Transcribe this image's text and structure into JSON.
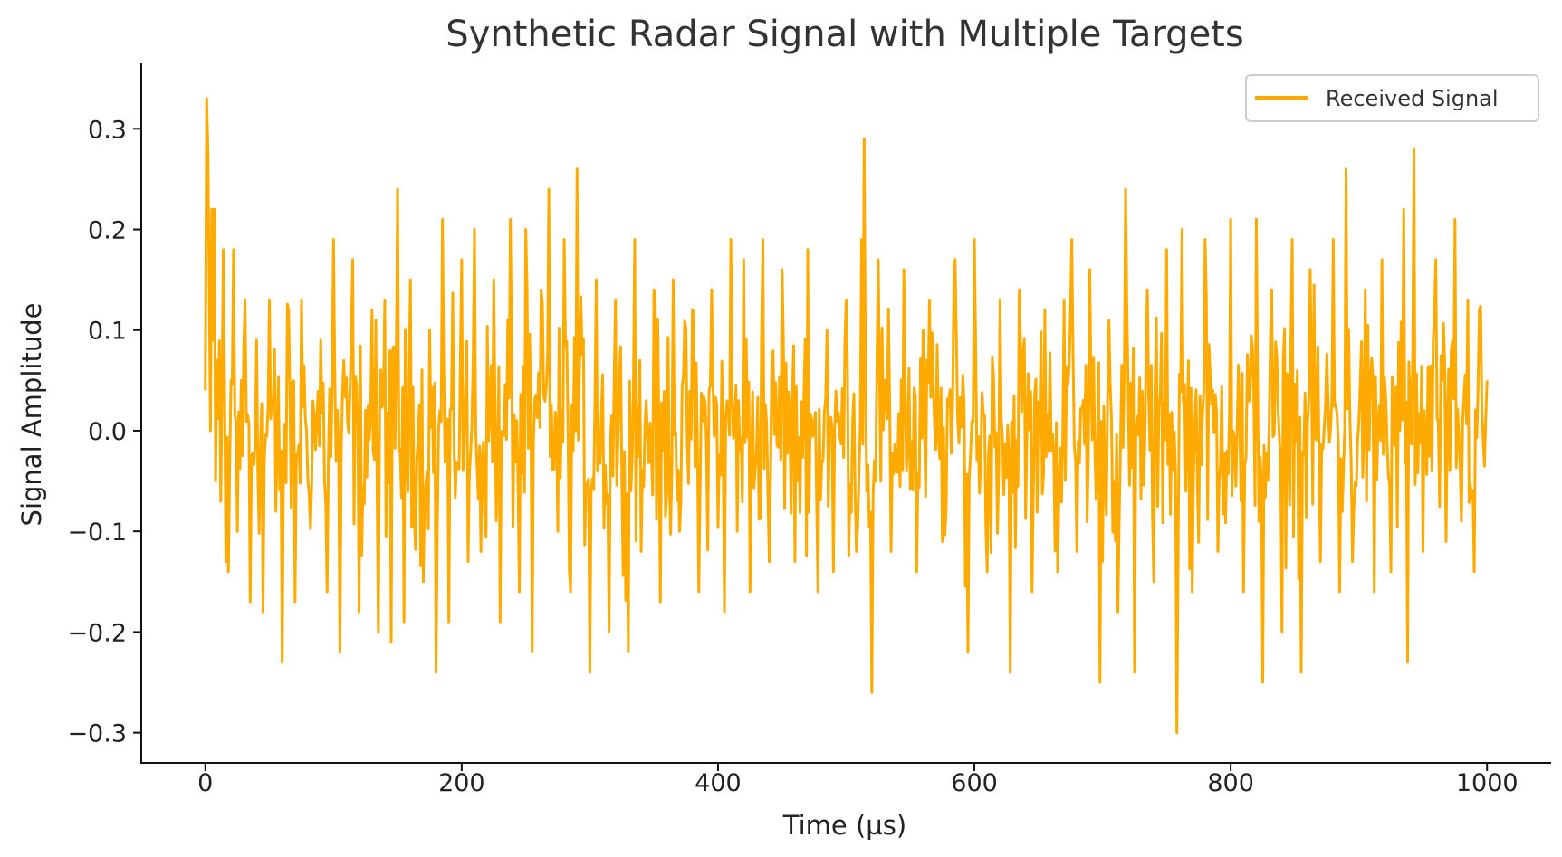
{
  "chart_data": {
    "type": "line",
    "title": "Synthetic Radar Signal with Multiple Targets",
    "xlabel": "Time (µs)",
    "ylabel": "Signal Amplitude",
    "xlim": [
      -50,
      1050
    ],
    "ylim": [
      -0.33,
      0.365
    ],
    "xticks": [
      0,
      200,
      400,
      600,
      800,
      1000
    ],
    "xtick_labels": [
      "0",
      "200",
      "400",
      "600",
      "800",
      "1000"
    ],
    "yticks": [
      -0.3,
      -0.2,
      -0.1,
      0.0,
      0.1,
      0.2,
      0.3
    ],
    "ytick_labels": [
      "−0.3",
      "−0.2",
      "−0.1",
      "0.0",
      "0.1",
      "0.2",
      "0.3"
    ],
    "grid": false,
    "legend_position": "top-right",
    "series": [
      {
        "name": "Received Signal",
        "color": "#FFAA00",
        "x_start": 0,
        "x_end": 1000,
        "x_step": 1,
        "points": [
          [
            0,
            0.04
          ],
          [
            1,
            0.33
          ],
          [
            2,
            0.28
          ],
          [
            3,
            0.15
          ],
          [
            4,
            0.0
          ],
          [
            5,
            0.22
          ],
          [
            6,
            0.09
          ],
          [
            7,
            0.22
          ],
          [
            8,
            -0.05
          ],
          [
            9,
            0.07
          ],
          [
            12,
            -0.07
          ],
          [
            14,
            0.18
          ],
          [
            16,
            -0.13
          ],
          [
            18,
            -0.14
          ],
          [
            20,
            0.05
          ],
          [
            22,
            0.18
          ],
          [
            25,
            -0.1
          ],
          [
            28,
            0.05
          ],
          [
            31,
            0.13
          ],
          [
            35,
            -0.17
          ],
          [
            40,
            0.09
          ],
          [
            45,
            -0.18
          ],
          [
            50,
            0.13
          ],
          [
            55,
            -0.08
          ],
          [
            60,
            -0.23
          ],
          [
            65,
            0.12
          ],
          [
            70,
            -0.17
          ],
          [
            75,
            0.13
          ],
          [
            80,
            -0.05
          ],
          [
            90,
            0.09
          ],
          [
            95,
            -0.16
          ],
          [
            100,
            0.19
          ],
          [
            105,
            -0.22
          ],
          [
            115,
            0.17
          ],
          [
            120,
            -0.18
          ],
          [
            130,
            0.12
          ],
          [
            135,
            -0.2
          ],
          [
            140,
            0.13
          ],
          [
            145,
            -0.21
          ],
          [
            150,
            0.24
          ],
          [
            155,
            -0.19
          ],
          [
            160,
            0.15
          ],
          [
            170,
            -0.15
          ],
          [
            175,
            0.1
          ],
          [
            180,
            -0.24
          ],
          [
            185,
            0.21
          ],
          [
            190,
            -0.19
          ],
          [
            200,
            0.17
          ],
          [
            205,
            -0.13
          ],
          [
            210,
            0.2
          ],
          [
            215,
            -0.12
          ],
          [
            225,
            0.15
          ],
          [
            230,
            -0.19
          ],
          [
            238,
            0.21
          ],
          [
            245,
            -0.16
          ],
          [
            250,
            0.2
          ],
          [
            255,
            -0.22
          ],
          [
            262,
            0.14
          ],
          [
            268,
            0.24
          ],
          [
            275,
            -0.1
          ],
          [
            280,
            0.19
          ],
          [
            285,
            -0.16
          ],
          [
            290,
            0.26
          ],
          [
            300,
            -0.24
          ],
          [
            305,
            0.15
          ],
          [
            315,
            -0.2
          ],
          [
            320,
            0.13
          ],
          [
            330,
            -0.22
          ],
          [
            335,
            0.19
          ],
          [
            340,
            -0.12
          ],
          [
            350,
            0.14
          ],
          [
            355,
            -0.17
          ],
          [
            365,
            0.15
          ],
          [
            370,
            -0.1
          ],
          [
            380,
            0.12
          ],
          [
            385,
            -0.16
          ],
          [
            395,
            0.14
          ],
          [
            405,
            -0.18
          ],
          [
            410,
            0.19
          ],
          [
            415,
            -0.1
          ],
          [
            420,
            0.17
          ],
          [
            425,
            -0.16
          ],
          [
            435,
            0.19
          ],
          [
            440,
            -0.13
          ],
          [
            450,
            0.16
          ],
          [
            460,
            -0.13
          ],
          [
            470,
            0.18
          ],
          [
            478,
            -0.16
          ],
          [
            485,
            0.1
          ],
          [
            490,
            -0.14
          ],
          [
            500,
            0.13
          ],
          [
            508,
            -0.12
          ],
          [
            512,
            0.19
          ],
          [
            514,
            0.29
          ],
          [
            516,
            -0.06
          ],
          [
            520,
            -0.26
          ],
          [
            525,
            0.17
          ],
          [
            535,
            -0.12
          ],
          [
            545,
            0.16
          ],
          [
            555,
            -0.14
          ],
          [
            565,
            0.13
          ],
          [
            575,
            -0.11
          ],
          [
            585,
            0.17
          ],
          [
            595,
            -0.22
          ],
          [
            600,
            0.19
          ],
          [
            610,
            -0.14
          ],
          [
            620,
            0.13
          ],
          [
            628,
            -0.24
          ],
          [
            635,
            0.14
          ],
          [
            645,
            -0.16
          ],
          [
            655,
            0.12
          ],
          [
            665,
            -0.14
          ],
          [
            670,
            0.13
          ],
          [
            676,
            0.19
          ],
          [
            680,
            -0.12
          ],
          [
            690,
            0.16
          ],
          [
            698,
            -0.25
          ],
          [
            705,
            0.11
          ],
          [
            712,
            -0.18
          ],
          [
            718,
            0.24
          ],
          [
            725,
            -0.24
          ],
          [
            735,
            0.14
          ],
          [
            740,
            -0.15
          ],
          [
            750,
            0.18
          ],
          [
            758,
            -0.3
          ],
          [
            762,
            0.2
          ],
          [
            770,
            -0.16
          ],
          [
            780,
            0.19
          ],
          [
            790,
            -0.12
          ],
          [
            800,
            0.21
          ],
          [
            810,
            -0.16
          ],
          [
            820,
            0.21
          ],
          [
            825,
            -0.25
          ],
          [
            832,
            0.14
          ],
          [
            840,
            -0.2
          ],
          [
            848,
            0.19
          ],
          [
            855,
            -0.24
          ],
          [
            862,
            0.16
          ],
          [
            870,
            -0.13
          ],
          [
            880,
            0.19
          ],
          [
            885,
            -0.16
          ],
          [
            890,
            0.26
          ],
          [
            895,
            -0.13
          ],
          [
            905,
            0.14
          ],
          [
            912,
            -0.16
          ],
          [
            918,
            0.17
          ],
          [
            925,
            -0.14
          ],
          [
            935,
            0.22
          ],
          [
            938,
            -0.23
          ],
          [
            943,
            0.28
          ],
          [
            950,
            -0.12
          ],
          [
            960,
            0.17
          ],
          [
            968,
            -0.11
          ],
          [
            975,
            0.21
          ],
          [
            980,
            -0.09
          ],
          [
            985,
            0.13
          ],
          [
            990,
            -0.14
          ],
          [
            994,
            0.12
          ],
          [
            997,
            -0.01
          ],
          [
            1000,
            0.05
          ]
        ]
      }
    ]
  }
}
